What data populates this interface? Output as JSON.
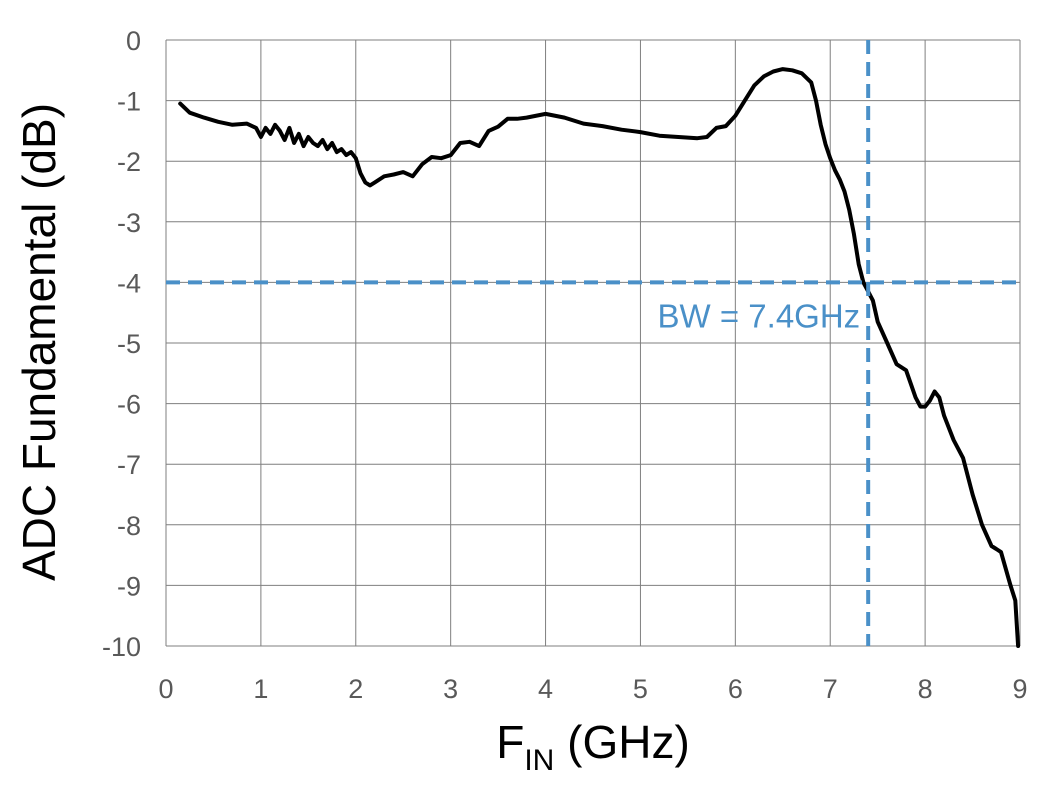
{
  "chart_data": {
    "type": "line",
    "xlabel": "F",
    "xlabel_sub": "IN",
    "xlabel_unit": " (GHz)",
    "ylabel": "ADC Fundamental (dB)",
    "xlim": [
      0,
      9
    ],
    "ylim": [
      -10,
      0
    ],
    "xticks": [
      "0",
      "1",
      "2",
      "3",
      "4",
      "5",
      "6",
      "7",
      "8",
      "9"
    ],
    "yticks": [
      "0",
      "-1",
      "-2",
      "-3",
      "-4",
      "-5",
      "-6",
      "-7",
      "-8",
      "-9",
      "-10"
    ],
    "grid": true,
    "legend": "none",
    "series": [
      {
        "color": "#000000",
        "x": [
          0.15,
          0.25,
          0.4,
          0.55,
          0.7,
          0.85,
          0.95,
          1.0,
          1.05,
          1.1,
          1.15,
          1.2,
          1.25,
          1.3,
          1.35,
          1.4,
          1.45,
          1.5,
          1.55,
          1.6,
          1.65,
          1.7,
          1.75,
          1.8,
          1.85,
          1.9,
          1.95,
          2.0,
          2.05,
          2.1,
          2.15,
          2.2,
          2.3,
          2.4,
          2.5,
          2.6,
          2.7,
          2.8,
          2.9,
          3.0,
          3.1,
          3.2,
          3.3,
          3.4,
          3.5,
          3.6,
          3.7,
          3.8,
          4.0,
          4.2,
          4.4,
          4.6,
          4.8,
          5.0,
          5.2,
          5.4,
          5.6,
          5.7,
          5.8,
          5.9,
          6.0,
          6.1,
          6.2,
          6.3,
          6.4,
          6.5,
          6.6,
          6.7,
          6.8,
          6.85,
          6.9,
          6.95,
          7.0,
          7.05,
          7.1,
          7.15,
          7.2,
          7.25,
          7.3,
          7.35,
          7.4,
          7.45,
          7.5,
          7.6,
          7.7,
          7.8,
          7.9,
          7.95,
          8.0,
          8.05,
          8.1,
          8.15,
          8.2,
          8.3,
          8.4,
          8.5,
          8.6,
          8.7,
          8.75,
          8.8,
          8.9,
          8.95,
          8.98
        ],
        "y": [
          -1.05,
          -1.2,
          -1.28,
          -1.35,
          -1.4,
          -1.38,
          -1.45,
          -1.6,
          -1.45,
          -1.55,
          -1.4,
          -1.5,
          -1.65,
          -1.45,
          -1.7,
          -1.55,
          -1.75,
          -1.6,
          -1.7,
          -1.75,
          -1.65,
          -1.8,
          -1.7,
          -1.85,
          -1.8,
          -1.9,
          -1.85,
          -1.95,
          -2.2,
          -2.35,
          -2.4,
          -2.35,
          -2.25,
          -2.22,
          -2.18,
          -2.25,
          -2.05,
          -1.93,
          -1.95,
          -1.9,
          -1.7,
          -1.68,
          -1.75,
          -1.5,
          -1.43,
          -1.3,
          -1.3,
          -1.28,
          -1.22,
          -1.28,
          -1.38,
          -1.42,
          -1.48,
          -1.52,
          -1.58,
          -1.6,
          -1.62,
          -1.6,
          -1.45,
          -1.42,
          -1.25,
          -1.0,
          -0.75,
          -0.6,
          -0.52,
          -0.48,
          -0.5,
          -0.55,
          -0.7,
          -1.0,
          -1.4,
          -1.72,
          -1.95,
          -2.15,
          -2.3,
          -2.5,
          -2.8,
          -3.2,
          -3.7,
          -4.0,
          -4.15,
          -4.3,
          -4.65,
          -5.0,
          -5.35,
          -5.45,
          -5.9,
          -6.05,
          -6.05,
          -5.95,
          -5.8,
          -5.9,
          -6.2,
          -6.6,
          -6.9,
          -7.5,
          -8.0,
          -8.35,
          -8.4,
          -8.45,
          -9.0,
          -9.25,
          -10.0
        ]
      }
    ],
    "annotations": [
      {
        "text": "BW = 7.4GHz",
        "color": "#4a90c8",
        "hline_y": -4,
        "vline_x": 7.4
      }
    ]
  }
}
